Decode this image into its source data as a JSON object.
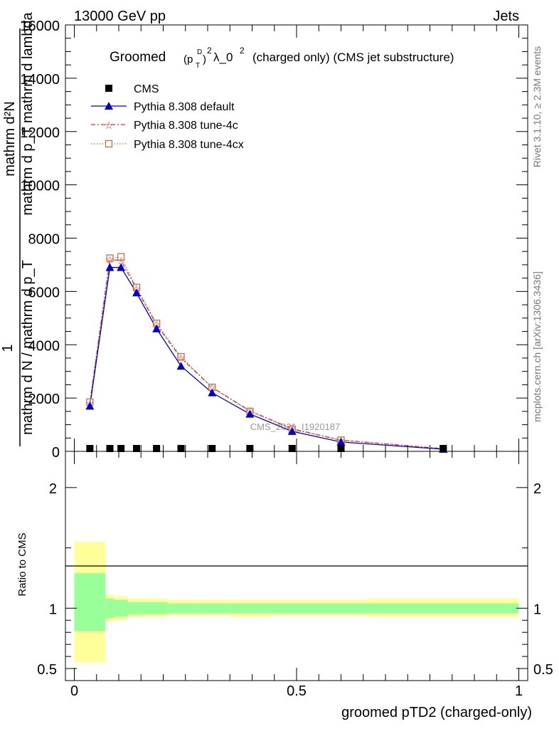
{
  "header": {
    "left": "13000 GeV pp",
    "right": "Jets"
  },
  "plot": {
    "title_prefix": "Groomed",
    "title_pt": "(p",
    "title_pt_sup": "D",
    "title_pt_sub": "T",
    "title_pt_close": ")",
    "title_exp": "2",
    "title_lambda": "λ_0",
    "title_lambda_exp": "2",
    "title_suffix": "(charged only) (CMS jet substructure)",
    "watermark": "CMS_2021_I1920187",
    "ylabel_main_num": "mathrm d²N",
    "ylabel_main_den": "mathrm d p_T mathrm d lambda",
    "ylabel_main_prefix": "1",
    "ylabel_main_mid": "mathrm d N / mathrm d p_T",
    "ylabel_ratio": "Ratio to CMS",
    "xlabel": "groomed pTD2 (charged-only)",
    "side_top": "Rivet 3.1.10, ≥ 2.3M events",
    "side_bottom": "mcplots.cern.ch [arXiv:1306.3436]"
  },
  "legend": [
    {
      "label": "CMS",
      "color": "#000000",
      "marker": "square"
    },
    {
      "label": "Pythia 8.308 default",
      "color": "#0000cc",
      "marker": "triangle"
    },
    {
      "label": "Pythia 8.308 tune-4c",
      "color": "#dd3333",
      "marker": "star"
    },
    {
      "label": "Pythia 8.308 tune-4cx",
      "color": "#cc6633",
      "marker": "open-square"
    }
  ],
  "chart_data": {
    "type": "line",
    "x_range": [
      -0.02,
      1.02
    ],
    "y_range": [
      0,
      16000
    ],
    "y_ticks": [
      0,
      2000,
      4000,
      6000,
      8000,
      10000,
      12000,
      14000,
      16000
    ],
    "y_tick_labels": [
      "0",
      "2000",
      "4000",
      "6000",
      "8000",
      "10000",
      "12000",
      "14000",
      "16000"
    ],
    "x_ticks": [
      0,
      0.5,
      1
    ],
    "x_tick_labels": [
      "0",
      "0.5",
      "1"
    ],
    "x": [
      0.035,
      0.08,
      0.105,
      0.14,
      0.185,
      0.24,
      0.31,
      0.395,
      0.49,
      0.6,
      0.83
    ],
    "series": [
      {
        "name": "CMS",
        "values": [
          20,
          20,
          20,
          20,
          20,
          20,
          20,
          20,
          20,
          20,
          20
        ]
      },
      {
        "name": "Pythia 8.308 default",
        "values": [
          1700,
          6900,
          6900,
          5950,
          4600,
          3200,
          2200,
          1400,
          750,
          350,
          80
        ]
      },
      {
        "name": "Pythia 8.308 tune-4c",
        "values": [
          1800,
          7200,
          7150,
          6100,
          4750,
          3500,
          2400,
          1520,
          850,
          420,
          100
        ]
      },
      {
        "name": "Pythia 8.308 tune-4cx",
        "values": [
          1850,
          7250,
          7300,
          6150,
          4800,
          3550,
          2400,
          1500,
          830,
          420,
          100
        ]
      }
    ],
    "ratio": {
      "y_range": [
        0.4,
        2.3
      ],
      "y_ticks": [
        0.5,
        1,
        2
      ],
      "y_tick_labels": [
        "0.5",
        "1",
        "2"
      ],
      "bands": [
        {
          "x0": 0.0,
          "x1": 0.07,
          "inner": [
            0.81,
            1.29
          ],
          "outer": [
            0.55,
            1.55
          ]
        },
        {
          "x0": 0.07,
          "x1": 0.09,
          "inner": [
            0.92,
            1.08
          ],
          "outer": [
            0.89,
            1.11
          ]
        },
        {
          "x0": 0.09,
          "x1": 0.12,
          "inner": [
            0.93,
            1.07
          ],
          "outer": [
            0.9,
            1.1
          ]
        },
        {
          "x0": 0.12,
          "x1": 0.16,
          "inner": [
            0.95,
            1.05
          ],
          "outer": [
            0.93,
            1.08
          ]
        },
        {
          "x0": 0.16,
          "x1": 0.21,
          "inner": [
            0.95,
            1.05
          ],
          "outer": [
            0.93,
            1.08
          ]
        },
        {
          "x0": 0.21,
          "x1": 0.27,
          "inner": [
            0.96,
            1.04
          ],
          "outer": [
            0.94,
            1.07
          ]
        },
        {
          "x0": 0.27,
          "x1": 0.35,
          "inner": [
            0.96,
            1.04
          ],
          "outer": [
            0.94,
            1.07
          ]
        },
        {
          "x0": 0.35,
          "x1": 0.44,
          "inner": [
            0.96,
            1.04
          ],
          "outer": [
            0.93,
            1.07
          ]
        },
        {
          "x0": 0.44,
          "x1": 0.54,
          "inner": [
            0.96,
            1.04
          ],
          "outer": [
            0.94,
            1.07
          ]
        },
        {
          "x0": 0.54,
          "x1": 0.66,
          "inner": [
            0.96,
            1.04
          ],
          "outer": [
            0.94,
            1.07
          ]
        },
        {
          "x0": 0.66,
          "x1": 1.0,
          "inner": [
            0.96,
            1.04
          ],
          "outer": [
            0.93,
            1.08
          ]
        }
      ],
      "inner_color": "#99ff99",
      "outer_color": "#ffff99"
    }
  }
}
